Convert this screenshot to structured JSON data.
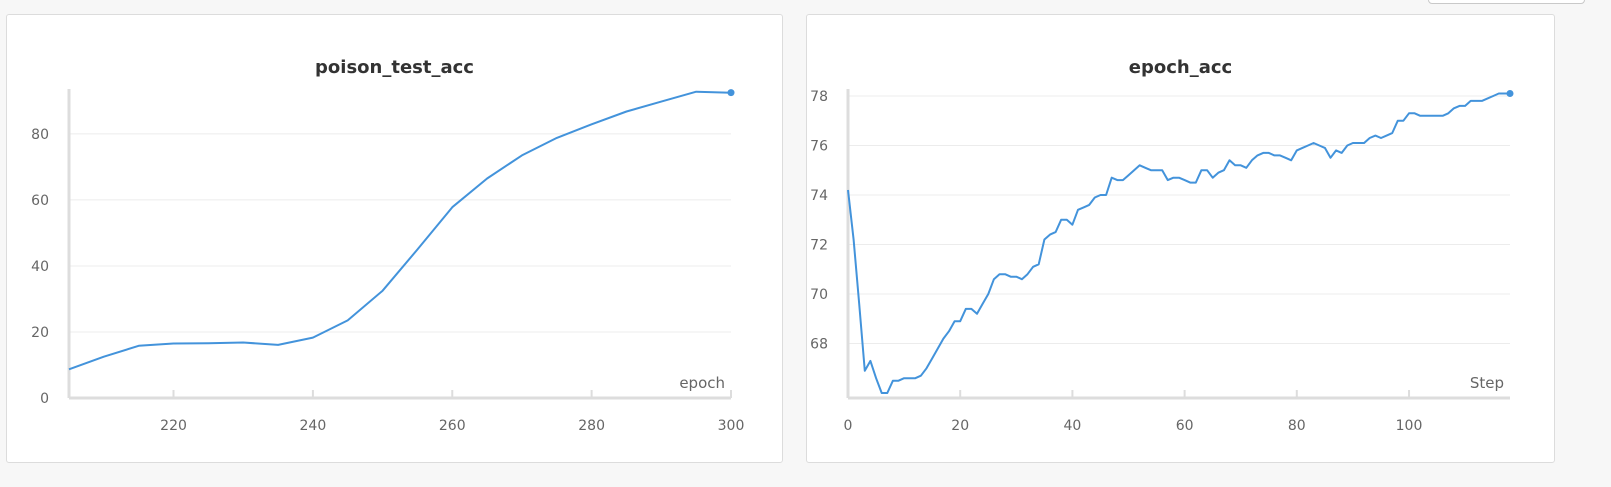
{
  "chart_data": [
    {
      "type": "line",
      "title": "poison_test_acc",
      "xlabel": "epoch",
      "ylabel": "",
      "xlim": [
        205,
        300
      ],
      "ylim": [
        0,
        93
      ],
      "xticks": [
        220,
        240,
        260,
        280,
        300
      ],
      "yticks": [
        0,
        20,
        40,
        60,
        80
      ],
      "grid": true,
      "series": [
        {
          "color": "#4393db",
          "x": [
            205,
            210,
            215,
            220,
            225,
            230,
            235,
            240,
            245,
            250,
            255,
            260,
            265,
            270,
            275,
            280,
            285,
            290,
            295,
            300
          ],
          "y": [
            8.7,
            12.5,
            15.8,
            16.5,
            16.6,
            16.8,
            16.1,
            18.3,
            23.5,
            32.5,
            45,
            57.8,
            66.5,
            73.5,
            78.8,
            82.9,
            86.8,
            89.8,
            92.8,
            92.5
          ]
        }
      ]
    },
    {
      "type": "line",
      "title": "epoch_acc",
      "xlabel": "Step",
      "ylabel": "",
      "xlim": [
        0,
        118
      ],
      "ylim": [
        65.8,
        78.2
      ],
      "xticks": [
        0,
        20,
        40,
        60,
        80,
        100
      ],
      "yticks": [
        68,
        70,
        72,
        74,
        76,
        78
      ],
      "grid": true,
      "series": [
        {
          "color": "#4393db",
          "x": [
            0,
            1,
            2,
            3,
            4,
            5,
            6,
            7,
            8,
            9,
            10,
            11,
            12,
            13,
            14,
            15,
            16,
            17,
            18,
            19,
            20,
            21,
            22,
            23,
            24,
            25,
            26,
            27,
            28,
            29,
            30,
            31,
            32,
            33,
            34,
            35,
            36,
            37,
            38,
            39,
            40,
            41,
            42,
            43,
            44,
            45,
            46,
            47,
            48,
            49,
            50,
            51,
            52,
            53,
            54,
            55,
            56,
            57,
            58,
            59,
            60,
            61,
            62,
            63,
            64,
            65,
            66,
            67,
            68,
            69,
            70,
            71,
            72,
            73,
            74,
            75,
            76,
            77,
            78,
            79,
            80,
            81,
            82,
            83,
            84,
            85,
            86,
            87,
            88,
            89,
            90,
            91,
            92,
            93,
            94,
            95,
            96,
            97,
            98,
            99,
            100,
            101,
            102,
            103,
            104,
            105,
            106,
            107,
            108,
            109,
            110,
            111,
            112,
            113,
            114,
            115,
            116,
            117,
            118
          ],
          "y": [
            74.2,
            72.2,
            69.6,
            66.9,
            67.3,
            66.6,
            66.0,
            66.0,
            66.5,
            66.5,
            66.6,
            66.6,
            66.6,
            66.7,
            67.0,
            67.4,
            67.8,
            68.2,
            68.5,
            68.9,
            68.9,
            69.4,
            69.4,
            69.2,
            69.6,
            70.0,
            70.6,
            70.8,
            70.8,
            70.7,
            70.7,
            70.6,
            70.8,
            71.1,
            71.2,
            72.2,
            72.4,
            72.5,
            73.0,
            73.0,
            72.8,
            73.4,
            73.5,
            73.6,
            73.9,
            74.0,
            74.0,
            74.7,
            74.6,
            74.6,
            74.8,
            75.0,
            75.2,
            75.1,
            75.0,
            75.0,
            75.0,
            74.6,
            74.7,
            74.7,
            74.6,
            74.5,
            74.5,
            75.0,
            75.0,
            74.7,
            74.9,
            75.0,
            75.4,
            75.2,
            75.2,
            75.1,
            75.4,
            75.6,
            75.7,
            75.7,
            75.6,
            75.6,
            75.5,
            75.4,
            75.8,
            75.9,
            76.0,
            76.1,
            76.0,
            75.9,
            75.5,
            75.8,
            75.7,
            76.0,
            76.1,
            76.1,
            76.1,
            76.3,
            76.4,
            76.3,
            76.4,
            76.5,
            77.0,
            77.0,
            77.3,
            77.3,
            77.2,
            77.2,
            77.2,
            77.2,
            77.2,
            77.3,
            77.5,
            77.6,
            77.6,
            77.8,
            77.8,
            77.8,
            77.9,
            78.0,
            78.1,
            78.1,
            78.1
          ]
        }
      ]
    }
  ]
}
